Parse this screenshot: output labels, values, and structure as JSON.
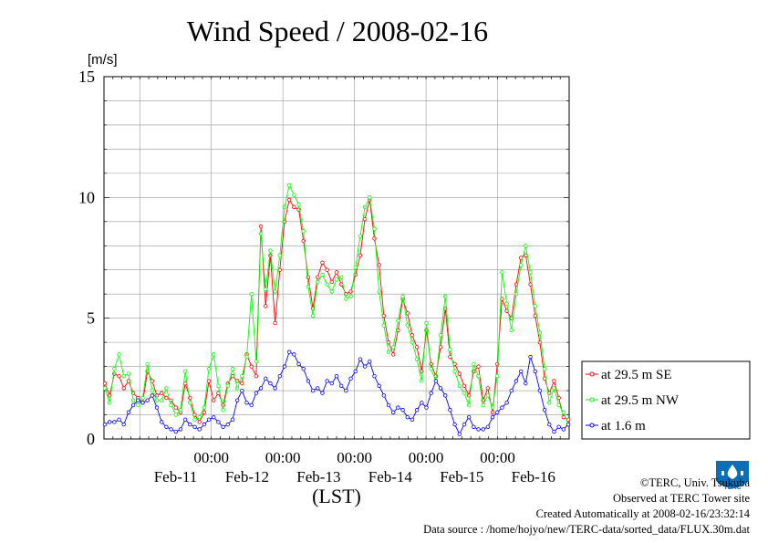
{
  "chart_data": {
    "type": "line",
    "title": "Wind Speed / 2008-02-16",
    "ylabel": "[m/s]",
    "xlabel": "(LST)",
    "ylim": [
      0,
      15
    ],
    "yticks": [
      "0",
      "5",
      "10",
      "15"
    ],
    "x_start": "2008-02-10 12:00",
    "x_end": "2008-02-16 24:00",
    "x_tick_labels": [
      "00:00",
      "00:00",
      "00:00",
      "00:00",
      "00:00"
    ],
    "x_date_labels": [
      "Feb-11",
      "Feb-12",
      "Feb-13",
      "Feb-14",
      "Feb-15",
      "Feb-16"
    ],
    "x_day_lines": [
      "Feb-11 00:00",
      "Feb-12 00:00",
      "Feb-13 00:00",
      "Feb-14 00:00",
      "Feb-15 00:00",
      "Feb-16 00:00"
    ],
    "grid": true,
    "legend_position": "right",
    "series": [
      {
        "name": "at 29.5 m SE",
        "color": "#ff0000",
        "values": [
          [
            0.0,
            2.3
          ],
          [
            0.15,
            1.8
          ],
          [
            0.3,
            2.7
          ],
          [
            0.45,
            2.6
          ],
          [
            0.6,
            2.1
          ],
          [
            0.75,
            2.4
          ],
          [
            0.9,
            1.9
          ],
          [
            1.05,
            1.7
          ],
          [
            1.2,
            1.5
          ],
          [
            1.35,
            2.8
          ],
          [
            1.5,
            2.4
          ],
          [
            1.65,
            1.8
          ],
          [
            1.8,
            1.9
          ],
          [
            1.95,
            1.7
          ],
          [
            2.1,
            1.6
          ],
          [
            2.25,
            1.3
          ],
          [
            2.4,
            1.1
          ],
          [
            2.55,
            2.3
          ],
          [
            2.7,
            1.7
          ],
          [
            2.85,
            1.0
          ],
          [
            3.0,
            0.7
          ],
          [
            3.15,
            1.1
          ],
          [
            3.3,
            2.4
          ],
          [
            3.45,
            1.6
          ],
          [
            3.6,
            1.9
          ],
          [
            3.75,
            1.4
          ],
          [
            3.9,
            2.3
          ],
          [
            4.05,
            2.6
          ],
          [
            4.2,
            2.4
          ],
          [
            4.35,
            2.3
          ],
          [
            4.5,
            3.5
          ],
          [
            4.65,
            3.0
          ],
          [
            4.8,
            2.6
          ],
          [
            4.95,
            8.8
          ],
          [
            5.1,
            5.5
          ],
          [
            5.25,
            7.6
          ],
          [
            5.4,
            4.8
          ],
          [
            5.55,
            7.0
          ],
          [
            5.7,
            9.0
          ],
          [
            5.85,
            9.9
          ],
          [
            6.0,
            9.6
          ],
          [
            6.15,
            9.5
          ],
          [
            6.3,
            8.2
          ],
          [
            6.45,
            6.7
          ],
          [
            6.6,
            5.4
          ],
          [
            6.75,
            6.7
          ],
          [
            6.9,
            7.3
          ],
          [
            7.05,
            7.0
          ],
          [
            7.2,
            6.5
          ],
          [
            7.35,
            6.9
          ],
          [
            7.5,
            6.4
          ],
          [
            7.65,
            6.0
          ],
          [
            7.8,
            6.1
          ],
          [
            7.95,
            6.8
          ],
          [
            8.1,
            7.6
          ],
          [
            8.25,
            9.1
          ],
          [
            8.4,
            9.9
          ],
          [
            8.55,
            8.3
          ],
          [
            8.7,
            7.2
          ],
          [
            8.85,
            5.1
          ],
          [
            9.0,
            4.0
          ],
          [
            9.15,
            3.5
          ],
          [
            9.3,
            4.5
          ],
          [
            9.45,
            5.8
          ],
          [
            9.6,
            5.2
          ],
          [
            9.75,
            4.3
          ],
          [
            9.9,
            3.8
          ],
          [
            10.05,
            2.8
          ],
          [
            10.2,
            4.5
          ],
          [
            10.35,
            3.1
          ],
          [
            10.5,
            2.6
          ],
          [
            10.65,
            3.8
          ],
          [
            10.8,
            5.4
          ],
          [
            10.95,
            3.4
          ],
          [
            11.1,
            3.1
          ],
          [
            11.25,
            2.7
          ],
          [
            11.4,
            2.2
          ],
          [
            11.55,
            1.8
          ],
          [
            11.7,
            2.8
          ],
          [
            11.85,
            3.0
          ],
          [
            12.0,
            1.6
          ],
          [
            12.15,
            2.1
          ],
          [
            12.3,
            1.1
          ],
          [
            12.45,
            3.1
          ],
          [
            12.6,
            5.8
          ],
          [
            12.75,
            5.3
          ],
          [
            12.9,
            5.0
          ],
          [
            13.05,
            6.4
          ],
          [
            13.2,
            7.5
          ],
          [
            13.35,
            7.6
          ],
          [
            13.5,
            6.4
          ],
          [
            13.65,
            5.1
          ],
          [
            13.8,
            4.0
          ],
          [
            13.95,
            2.5
          ],
          [
            14.1,
            1.9
          ],
          [
            14.25,
            2.4
          ],
          [
            14.4,
            1.7
          ],
          [
            14.55,
            0.9
          ],
          [
            14.7,
            0.8
          ]
        ]
      },
      {
        "name": "at 29.5 m NW",
        "color": "#00ff00",
        "values": [
          [
            0.0,
            2.1
          ],
          [
            0.15,
            1.5
          ],
          [
            0.3,
            2.9
          ],
          [
            0.45,
            3.5
          ],
          [
            0.6,
            2.6
          ],
          [
            0.75,
            2.7
          ],
          [
            0.9,
            1.6
          ],
          [
            1.05,
            1.4
          ],
          [
            1.2,
            1.7
          ],
          [
            1.35,
            3.1
          ],
          [
            1.5,
            2.0
          ],
          [
            1.65,
            1.6
          ],
          [
            1.8,
            1.6
          ],
          [
            1.95,
            2.1
          ],
          [
            2.1,
            1.4
          ],
          [
            2.25,
            1.0
          ],
          [
            2.4,
            1.2
          ],
          [
            2.55,
            2.8
          ],
          [
            2.7,
            1.5
          ],
          [
            2.85,
            0.8
          ],
          [
            3.0,
            0.9
          ],
          [
            3.15,
            1.3
          ],
          [
            3.3,
            2.9
          ],
          [
            3.45,
            3.5
          ],
          [
            3.6,
            2.2
          ],
          [
            3.75,
            1.2
          ],
          [
            3.9,
            2.2
          ],
          [
            4.05,
            2.9
          ],
          [
            4.2,
            2.1
          ],
          [
            4.35,
            2.6
          ],
          [
            4.5,
            3.4
          ],
          [
            4.65,
            6.0
          ],
          [
            4.8,
            3.2
          ],
          [
            4.95,
            8.5
          ],
          [
            5.1,
            6.2
          ],
          [
            5.25,
            7.8
          ],
          [
            5.4,
            6.1
          ],
          [
            5.55,
            7.6
          ],
          [
            5.7,
            9.6
          ],
          [
            5.85,
            10.5
          ],
          [
            6.0,
            10.1
          ],
          [
            6.15,
            9.7
          ],
          [
            6.3,
            8.6
          ],
          [
            6.45,
            6.3
          ],
          [
            6.6,
            5.1
          ],
          [
            6.75,
            6.5
          ],
          [
            6.9,
            6.8
          ],
          [
            7.05,
            6.4
          ],
          [
            7.2,
            6.1
          ],
          [
            7.35,
            6.6
          ],
          [
            7.5,
            6.7
          ],
          [
            7.65,
            5.8
          ],
          [
            7.8,
            5.9
          ],
          [
            7.95,
            7.1
          ],
          [
            8.1,
            8.4
          ],
          [
            8.25,
            9.6
          ],
          [
            8.4,
            10.0
          ],
          [
            8.55,
            8.7
          ],
          [
            8.7,
            6.1
          ],
          [
            8.85,
            4.7
          ],
          [
            9.0,
            3.6
          ],
          [
            9.15,
            3.8
          ],
          [
            9.3,
            4.9
          ],
          [
            9.45,
            5.9
          ],
          [
            9.6,
            4.7
          ],
          [
            9.75,
            4.0
          ],
          [
            9.9,
            3.3
          ],
          [
            10.05,
            2.4
          ],
          [
            10.2,
            4.8
          ],
          [
            10.35,
            2.9
          ],
          [
            10.5,
            2.4
          ],
          [
            10.65,
            4.3
          ],
          [
            10.8,
            5.9
          ],
          [
            10.95,
            3.7
          ],
          [
            11.1,
            2.8
          ],
          [
            11.25,
            2.2
          ],
          [
            11.4,
            1.9
          ],
          [
            11.55,
            1.4
          ],
          [
            11.7,
            3.1
          ],
          [
            11.85,
            2.6
          ],
          [
            12.0,
            1.4
          ],
          [
            12.15,
            1.8
          ],
          [
            12.3,
            1.3
          ],
          [
            12.45,
            2.6
          ],
          [
            12.6,
            6.9
          ],
          [
            12.75,
            5.6
          ],
          [
            12.9,
            4.5
          ],
          [
            13.05,
            6.0
          ],
          [
            13.2,
            7.2
          ],
          [
            13.35,
            8.0
          ],
          [
            13.5,
            6.9
          ],
          [
            13.65,
            5.5
          ],
          [
            13.8,
            4.4
          ],
          [
            13.95,
            2.9
          ],
          [
            14.1,
            1.5
          ],
          [
            14.25,
            2.1
          ],
          [
            14.4,
            1.4
          ],
          [
            14.55,
            1.1
          ],
          [
            14.7,
            0.6
          ]
        ]
      },
      {
        "name": "at 1.6 m",
        "color": "#0000ff",
        "values": [
          [
            0.0,
            0.6
          ],
          [
            0.15,
            0.7
          ],
          [
            0.3,
            0.7
          ],
          [
            0.45,
            0.8
          ],
          [
            0.6,
            0.6
          ],
          [
            0.75,
            1.1
          ],
          [
            0.9,
            1.4
          ],
          [
            1.05,
            1.6
          ],
          [
            1.2,
            1.5
          ],
          [
            1.35,
            1.6
          ],
          [
            1.5,
            1.8
          ],
          [
            1.65,
            1.3
          ],
          [
            1.8,
            0.7
          ],
          [
            1.95,
            0.5
          ],
          [
            2.1,
            0.4
          ],
          [
            2.25,
            0.3
          ],
          [
            2.4,
            0.4
          ],
          [
            2.55,
            0.8
          ],
          [
            2.7,
            0.6
          ],
          [
            2.85,
            0.5
          ],
          [
            3.0,
            0.4
          ],
          [
            3.15,
            0.6
          ],
          [
            3.3,
            0.8
          ],
          [
            3.45,
            0.9
          ],
          [
            3.6,
            0.7
          ],
          [
            3.75,
            0.5
          ],
          [
            3.9,
            0.6
          ],
          [
            4.05,
            0.8
          ],
          [
            4.2,
            1.6
          ],
          [
            4.35,
            2.0
          ],
          [
            4.5,
            1.5
          ],
          [
            4.65,
            1.4
          ],
          [
            4.8,
            1.9
          ],
          [
            4.95,
            2.1
          ],
          [
            5.1,
            2.5
          ],
          [
            5.25,
            2.3
          ],
          [
            5.4,
            2.1
          ],
          [
            5.55,
            2.6
          ],
          [
            5.7,
            3.0
          ],
          [
            5.85,
            3.6
          ],
          [
            6.0,
            3.5
          ],
          [
            6.15,
            3.1
          ],
          [
            6.3,
            2.9
          ],
          [
            6.45,
            2.4
          ],
          [
            6.6,
            2.0
          ],
          [
            6.75,
            2.1
          ],
          [
            6.9,
            1.9
          ],
          [
            7.05,
            2.4
          ],
          [
            7.2,
            2.3
          ],
          [
            7.35,
            2.6
          ],
          [
            7.5,
            2.2
          ],
          [
            7.65,
            2.0
          ],
          [
            7.8,
            2.5
          ],
          [
            7.95,
            2.8
          ],
          [
            8.1,
            3.3
          ],
          [
            8.25,
            3.0
          ],
          [
            8.4,
            3.2
          ],
          [
            8.55,
            2.6
          ],
          [
            8.7,
            2.2
          ],
          [
            8.85,
            1.8
          ],
          [
            9.0,
            1.4
          ],
          [
            9.15,
            1.1
          ],
          [
            9.3,
            1.3
          ],
          [
            9.45,
            1.2
          ],
          [
            9.6,
            0.9
          ],
          [
            9.75,
            0.8
          ],
          [
            9.9,
            1.2
          ],
          [
            10.05,
            1.5
          ],
          [
            10.2,
            1.3
          ],
          [
            10.35,
            1.9
          ],
          [
            10.5,
            2.4
          ],
          [
            10.65,
            2.1
          ],
          [
            10.8,
            1.8
          ],
          [
            10.95,
            1.2
          ],
          [
            11.1,
            0.6
          ],
          [
            11.25,
            0.2
          ],
          [
            11.4,
            0.6
          ],
          [
            11.55,
            0.9
          ],
          [
            11.7,
            0.5
          ],
          [
            11.85,
            0.4
          ],
          [
            12.0,
            0.4
          ],
          [
            12.15,
            0.5
          ],
          [
            12.3,
            0.9
          ],
          [
            12.45,
            1.1
          ],
          [
            12.6,
            1.3
          ],
          [
            12.75,
            1.5
          ],
          [
            12.9,
            2.0
          ],
          [
            13.05,
            2.4
          ],
          [
            13.2,
            2.8
          ],
          [
            13.35,
            2.3
          ],
          [
            13.5,
            3.4
          ],
          [
            13.65,
            2.8
          ],
          [
            13.8,
            2.0
          ],
          [
            13.95,
            1.2
          ],
          [
            14.1,
            0.6
          ],
          [
            14.25,
            0.3
          ],
          [
            14.4,
            0.5
          ],
          [
            14.55,
            0.4
          ],
          [
            14.7,
            0.6
          ]
        ]
      }
    ]
  },
  "footer": {
    "copyright": "©TERC, Univ. Tsukuba",
    "observed": "Observed at TERC Tower site",
    "created": "Created Automatically at 2008-02-16/23:32:14",
    "source": "Data source : /home/hojyo/new/TERC-data/sorted_data/FLUX.30m.dat"
  },
  "logo_text": "TERC"
}
